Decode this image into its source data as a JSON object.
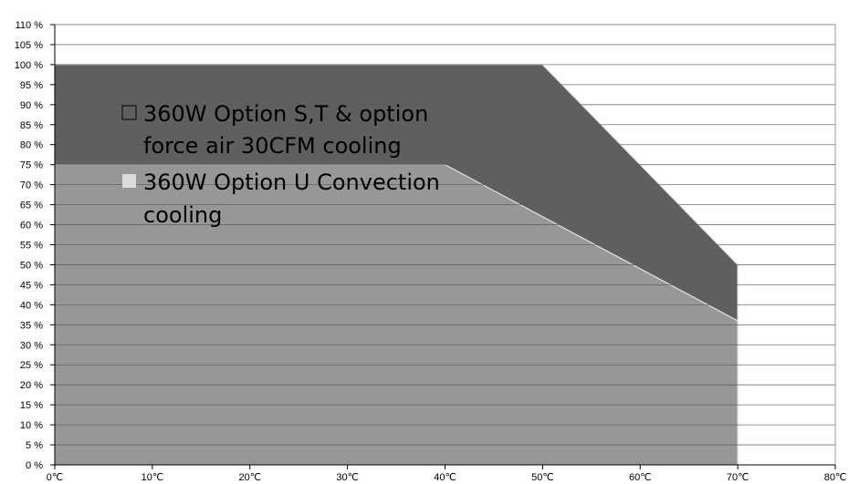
{
  "chart_data": {
    "type": "area",
    "title": "",
    "xlabel": "",
    "ylabel": "",
    "x_unit": "℃",
    "y_unit": "%",
    "xlim": [
      0,
      80
    ],
    "ylim": [
      0,
      110
    ],
    "x_ticks": [
      0,
      10,
      20,
      30,
      40,
      50,
      60,
      70,
      80
    ],
    "y_ticks": [
      0,
      5,
      10,
      15,
      20,
      25,
      30,
      35,
      40,
      45,
      50,
      55,
      60,
      65,
      70,
      75,
      80,
      85,
      90,
      95,
      100,
      105,
      110
    ],
    "grid": true,
    "legend_position": "top-left",
    "series": [
      {
        "name": "360W Option S,T & option force air 30CFM cooling",
        "color": "#5f5f5f",
        "points": [
          [
            0,
            100
          ],
          [
            50,
            100
          ],
          [
            70,
            50
          ]
        ]
      },
      {
        "name": "360W Option U Convection cooling",
        "color": "#979797",
        "points": [
          [
            0,
            75
          ],
          [
            40,
            75
          ],
          [
            70,
            36
          ]
        ]
      }
    ],
    "legend": {
      "series0_lines": [
        "360W Option S,T & option",
        "force air 30CFM cooling"
      ],
      "series1_lines": [
        "360W Option U Convection",
        "cooling"
      ]
    }
  }
}
